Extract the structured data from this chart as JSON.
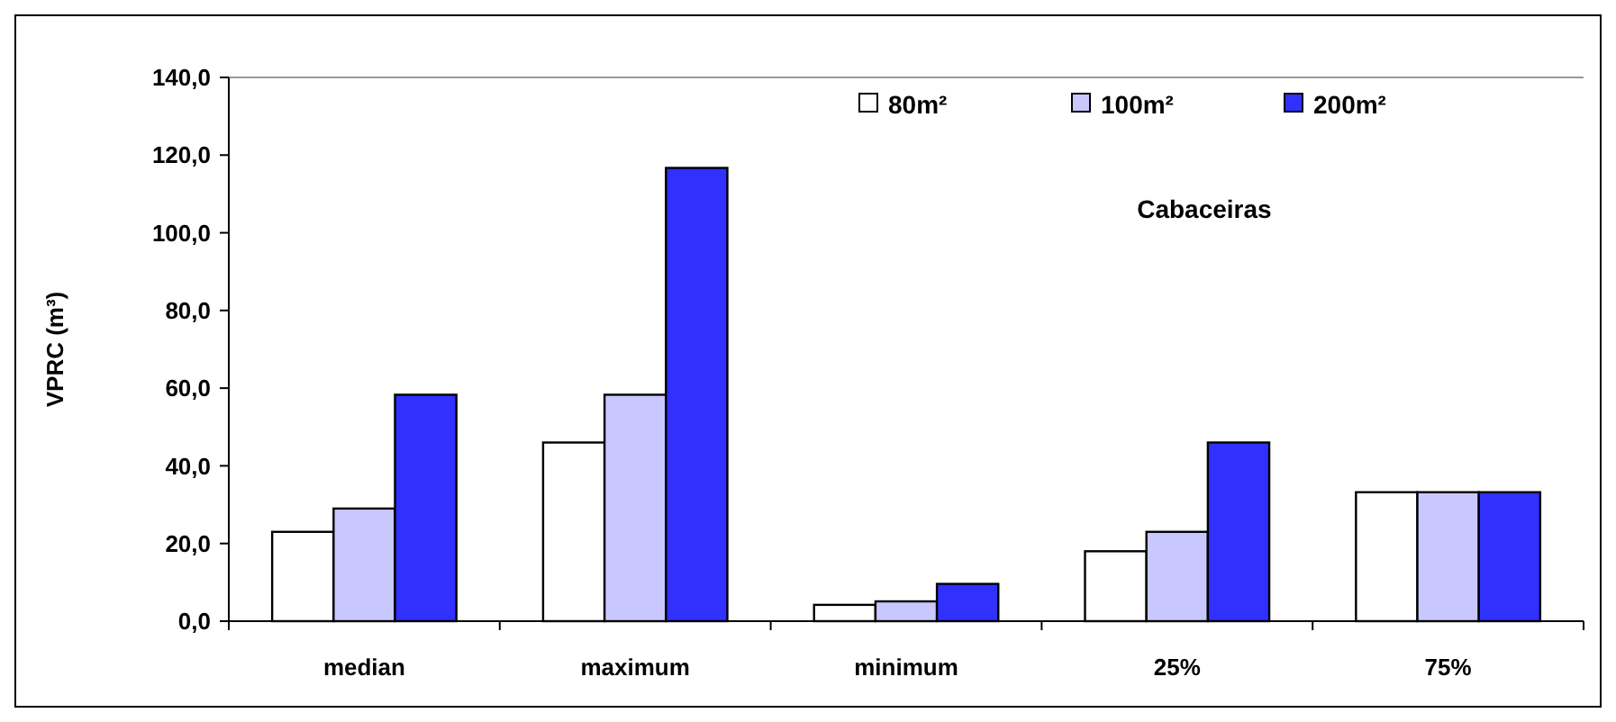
{
  "chart_data": {
    "type": "bar",
    "ylabel": "VPRC (m³)",
    "annotations": [
      "Cabaceiras"
    ],
    "categories": [
      "median",
      "maximum",
      "minimum",
      "25%",
      "75%"
    ],
    "series": [
      {
        "name": "80m²",
        "color": "#ffffff",
        "values": [
          23,
          46,
          4.2,
          18,
          33.2
        ]
      },
      {
        "name": "100m²",
        "color": "#c8c8ff",
        "values": [
          29,
          58.3,
          5.1,
          23,
          33.2
        ]
      },
      {
        "name": "200m²",
        "color": "#3030ff",
        "values": [
          58.3,
          116.7,
          9.6,
          46,
          33.2
        ]
      }
    ],
    "ylim": [
      0,
      140
    ],
    "yticks": [
      {
        "value": 0,
        "label": "0,0"
      },
      {
        "value": 20,
        "label": "20,0"
      },
      {
        "value": 40,
        "label": "40,0"
      },
      {
        "value": 60,
        "label": "60,0"
      },
      {
        "value": 80,
        "label": "80,0"
      },
      {
        "value": 100,
        "label": "100,0"
      },
      {
        "value": 120,
        "label": "120,0"
      },
      {
        "value": 140,
        "label": "140,0"
      }
    ],
    "grid": false,
    "legend": "top"
  }
}
